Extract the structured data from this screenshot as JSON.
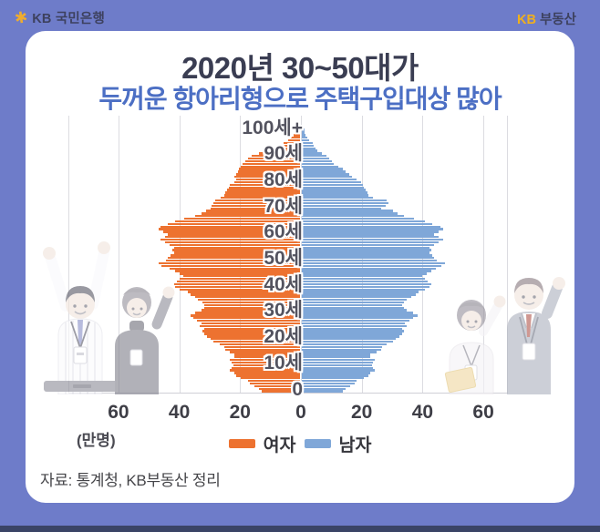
{
  "header": {
    "bank_logo_star": "✱",
    "bank_name": "KB 국민은행",
    "brand_kb": "KB",
    "brand_suffix": "부동산"
  },
  "title": {
    "line1": "2020년 30~50대가",
    "line2": "두꺼운 항아리형으로 주택구입대상 많아"
  },
  "chart_data": {
    "type": "bar",
    "subtype": "population-pyramid",
    "title": "2020년 30~50대가 두꺼운 항아리형으로 주택구입대상 많아",
    "unit_label": "(만명)",
    "age_resolution": "1세 단위, 0~100세+",
    "x_axis": {
      "tick_labels": [
        "60",
        "40",
        "20",
        "0",
        "20",
        "40",
        "60"
      ],
      "tick_values": [
        -60,
        -40,
        -20,
        0,
        20,
        40,
        60
      ],
      "max_per_side": 60
    },
    "age_axis": {
      "labels": [
        "100세+",
        "90세",
        "80세",
        "70세",
        "60세",
        "50세",
        "40세",
        "30세",
        "20세",
        "10세",
        "0"
      ],
      "label_ages": [
        100,
        90,
        80,
        70,
        60,
        50,
        40,
        30,
        20,
        10,
        0
      ]
    },
    "legend": [
      {
        "label": "여자",
        "color": "#ED7230"
      },
      {
        "label": "남자",
        "color": "#7FA7D8"
      }
    ],
    "series": [
      {
        "name": "여자",
        "side": "left",
        "color": "#ED7230",
        "ages": "0-100",
        "values": [
          12.5,
          13.5,
          15,
          16.5,
          17,
          19.5,
          21,
          21.5,
          23,
          22.5,
          22,
          22.5,
          23,
          21.5,
          21.5,
          23,
          24.5,
          25,
          26.5,
          28.5,
          29.5,
          30.5,
          31.5,
          32,
          31.5,
          33,
          32.5,
          34,
          35,
          36,
          34.5,
          32.5,
          31.5,
          31.5,
          32,
          33.5,
          34.5,
          36,
          37,
          39.5,
          41,
          41.5,
          40.5,
          39.5,
          38.5,
          39.5,
          41,
          43,
          45.5,
          46.5,
          44,
          43.5,
          42.5,
          41.5,
          42,
          41.5,
          43,
          44.5,
          46,
          44.5,
          43.5,
          45,
          46.5,
          46,
          43.5,
          41,
          38,
          34.5,
          32.5,
          31,
          29.5,
          29,
          28.5,
          28,
          26,
          25,
          24.5,
          24,
          23.5,
          23,
          21.5,
          21,
          21.5,
          21,
          20.5,
          20,
          19.5,
          19,
          18,
          17,
          16,
          13.5,
          11,
          9,
          7,
          5.5,
          4,
          3,
          2,
          1.2,
          1.5
        ]
      },
      {
        "name": "남자",
        "side": "right",
        "color": "#7FA7D8",
        "ages": "0-100",
        "values": [
          13.5,
          14.5,
          16,
          17.5,
          18,
          20.5,
          22,
          22.5,
          24,
          23.5,
          23,
          23.5,
          24,
          22.5,
          22.5,
          24.5,
          26,
          26.5,
          28,
          30,
          31,
          32,
          33,
          33.5,
          33,
          34.5,
          34,
          35.5,
          36.5,
          38,
          36.5,
          34.5,
          33.5,
          33,
          33.5,
          34.5,
          36,
          37.5,
          38.5,
          40.5,
          42,
          42.5,
          41.5,
          40.5,
          39.5,
          41,
          42.5,
          44,
          46,
          47,
          44.5,
          43.5,
          43,
          42,
          42.5,
          42,
          43.5,
          45,
          46.5,
          45,
          43.5,
          45,
          46.5,
          45.5,
          43,
          40.5,
          37,
          33.5,
          31.5,
          30,
          26,
          27.5,
          28.5,
          28,
          23.5,
          22,
          21.5,
          21,
          20.5,
          20,
          19.5,
          18,
          16.5,
          15.5,
          14.5,
          13.5,
          12,
          10.5,
          10,
          9,
          8,
          6.5,
          5,
          4.5,
          4,
          3.5,
          2.5,
          1.8,
          1.2,
          0.8,
          1
        ]
      }
    ]
  },
  "source": {
    "text": "자료: 통계청, KB부동산 정리"
  },
  "colors": {
    "background": "#6E7CC9",
    "card": "#FFFFFF",
    "female_bar": "#ED7230",
    "male_bar": "#7FA7D8",
    "title_dark": "#3A3D52",
    "title_blue": "#4C6FC4",
    "bottom_strip": "#3A4466",
    "kb_gold": "#F0B01C"
  }
}
